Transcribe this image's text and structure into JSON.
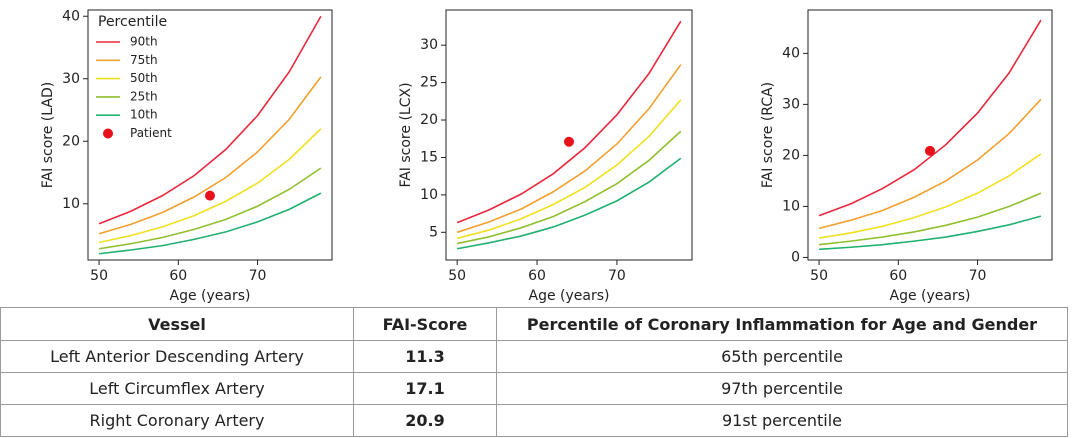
{
  "chart_data": [
    {
      "type": "line",
      "ylabel": "FAI score (LAD)",
      "xlabel": "Age (years)",
      "x": [
        50,
        54,
        58,
        62,
        66,
        70,
        74,
        78
      ],
      "xlim": [
        48.6,
        79.4
      ],
      "ylim": [
        1,
        41
      ],
      "xticks": [
        50,
        60,
        70
      ],
      "yticks": [
        10,
        20,
        30,
        40
      ],
      "legend": "upper left",
      "legend_title": "Percentile",
      "series": [
        {
          "name": "90th",
          "color": "#e8283c",
          "values": [
            6.8,
            8.8,
            11.3,
            14.5,
            18.7,
            24.1,
            31.1,
            40.0
          ]
        },
        {
          "name": "75th",
          "color": "#f0a030",
          "values": [
            5.2,
            6.7,
            8.6,
            11.1,
            14.2,
            18.3,
            23.5,
            30.3
          ]
        },
        {
          "name": "50th",
          "color": "#f0e020",
          "values": [
            3.8,
            4.9,
            6.3,
            8.1,
            10.4,
            13.3,
            17.1,
            22.0
          ]
        },
        {
          "name": "25th",
          "color": "#90c030",
          "values": [
            2.8,
            3.6,
            4.6,
            5.9,
            7.5,
            9.6,
            12.3,
            15.7
          ]
        },
        {
          "name": "10th",
          "color": "#20b070",
          "values": [
            2.0,
            2.6,
            3.3,
            4.3,
            5.5,
            7.1,
            9.1,
            11.7
          ]
        }
      ],
      "patient": {
        "name": "Patient",
        "color": "#e8101a",
        "x": 64,
        "y": 11.3
      }
    },
    {
      "type": "line",
      "ylabel": "FAI score (LCX)",
      "xlabel": "Age (years)",
      "x": [
        50,
        54,
        58,
        62,
        66,
        70,
        74,
        78
      ],
      "xlim": [
        48.6,
        79.4
      ],
      "ylim": [
        1.3,
        34.7
      ],
      "xticks": [
        50,
        60,
        70
      ],
      "yticks": [
        5,
        10,
        15,
        20,
        25,
        30
      ],
      "series": [
        {
          "color": "#e8283c",
          "values": [
            6.3,
            8.0,
            10.1,
            12.8,
            16.3,
            20.7,
            26.2,
            33.2
          ]
        },
        {
          "color": "#f0a030",
          "values": [
            5.0,
            6.4,
            8.1,
            10.4,
            13.2,
            16.8,
            21.5,
            27.4
          ]
        },
        {
          "color": "#f0e020",
          "values": [
            4.2,
            5.3,
            6.8,
            8.7,
            11.0,
            14.0,
            17.8,
            22.7
          ]
        },
        {
          "color": "#90c030",
          "values": [
            3.5,
            4.4,
            5.6,
            7.1,
            9.1,
            11.5,
            14.6,
            18.5
          ]
        },
        {
          "color": "#20b070",
          "values": [
            2.8,
            3.6,
            4.5,
            5.7,
            7.3,
            9.2,
            11.7,
            14.9
          ]
        }
      ],
      "patient": {
        "color": "#e8101a",
        "x": 64,
        "y": 17.1
      }
    },
    {
      "type": "line",
      "ylabel": "FAI score (RCA)",
      "xlabel": "Age (years)",
      "x": [
        50,
        54,
        58,
        62,
        66,
        70,
        74,
        78
      ],
      "xlim": [
        48.6,
        79.4
      ],
      "ylim": [
        -0.5,
        48.5
      ],
      "xticks": [
        50,
        60,
        70
      ],
      "yticks": [
        0,
        10,
        20,
        30,
        40
      ],
      "series": [
        {
          "color": "#e8283c",
          "values": [
            8.2,
            10.5,
            13.5,
            17.2,
            22.1,
            28.3,
            36.2,
            46.5
          ]
        },
        {
          "color": "#f0a030",
          "values": [
            5.7,
            7.3,
            9.2,
            11.8,
            15.0,
            19.1,
            24.3,
            31.0
          ]
        },
        {
          "color": "#f0e020",
          "values": [
            3.8,
            4.8,
            6.1,
            7.8,
            9.9,
            12.6,
            16.0,
            20.3
          ]
        },
        {
          "color": "#90c030",
          "values": [
            2.5,
            3.2,
            4.0,
            5.0,
            6.3,
            7.9,
            10.0,
            12.6
          ]
        },
        {
          "color": "#20b070",
          "values": [
            1.6,
            2.0,
            2.5,
            3.2,
            4.0,
            5.1,
            6.4,
            8.1
          ]
        }
      ],
      "patient": {
        "color": "#e8101a",
        "x": 64,
        "y": 20.9
      }
    }
  ],
  "table": {
    "header": [
      "Vessel",
      "FAI-Score",
      "Percentile of Coronary Inflammation for Age and Gender"
    ],
    "rows": [
      [
        "Left Anterior Descending Artery",
        "11.3",
        "65th percentile"
      ],
      [
        "Left Circumflex Artery",
        "17.1",
        "97th percentile"
      ],
      [
        "Right Coronary Artery",
        "20.9",
        "91st percentile"
      ]
    ]
  }
}
